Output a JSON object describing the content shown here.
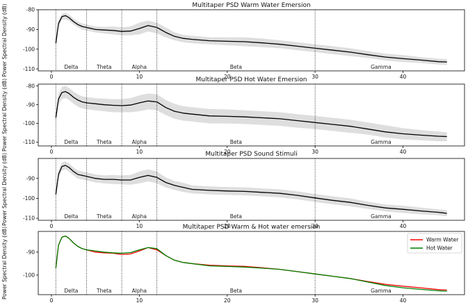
{
  "figure": {
    "background": "#ffffff",
    "mean_color": "#000000",
    "band_fill": "#d3d3d3",
    "band_text_color": "#222222"
  },
  "chart_data": [
    {
      "type": "line",
      "title": "Multitaper PSD Warm Water Emersion",
      "ylabel": "Power Spectral Density (dB)",
      "xlabel": "",
      "xlim": [
        -1.5,
        47
      ],
      "ylim": [
        -111,
        -80
      ],
      "xticks": [
        0,
        10,
        20,
        30,
        40
      ],
      "yticks": [
        -80,
        -90,
        -100,
        -110
      ],
      "freq_bands": [
        {
          "name": "Delta",
          "from": 0.5,
          "to": 4
        },
        {
          "name": "Theta",
          "from": 4,
          "to": 8
        },
        {
          "name": "Alpha",
          "from": 8,
          "to": 12
        },
        {
          "name": "Beta",
          "from": 12,
          "to": 30
        },
        {
          "name": "Gamma",
          "from": 30,
          "to": 45
        }
      ],
      "x": [
        0.5,
        0.8,
        1.2,
        1.6,
        2,
        2.5,
        3,
        3.5,
        4,
        5,
        6,
        7,
        8,
        9,
        10,
        11,
        12,
        13,
        14,
        15,
        16,
        18,
        20,
        22,
        24,
        26,
        28,
        30,
        32,
        34,
        36,
        38,
        40,
        42,
        44,
        45
      ],
      "series": [
        {
          "name": "",
          "values": [
            -97,
            -87,
            -83.5,
            -83,
            -84,
            -86,
            -87.5,
            -88.5,
            -89,
            -90,
            -90.3,
            -90.5,
            -91,
            -90.8,
            -89.5,
            -88,
            -89,
            -91.5,
            -93.5,
            -94.5,
            -95,
            -95.7,
            -96,
            -96.2,
            -96.8,
            -97.5,
            -98.5,
            -99.5,
            -100.5,
            -101.5,
            -102.8,
            -104,
            -104.8,
            -105.5,
            -106.3,
            -106.5
          ],
          "lower": [
            -98.5,
            -89,
            -85,
            -85,
            -85.5,
            -87.5,
            -89,
            -90,
            -90.5,
            -91.5,
            -92,
            -92.5,
            -93,
            -93,
            -92.5,
            -91,
            -92,
            -94,
            -95.5,
            -96.5,
            -97,
            -97.5,
            -98,
            -98.5,
            -99,
            -99.5,
            -100.5,
            -101.5,
            -102.5,
            -103.5,
            -104.5,
            -105.7,
            -106.5,
            -107,
            -107.8,
            -108
          ],
          "upper": [
            -95.5,
            -85.5,
            -82,
            -81.5,
            -82.5,
            -84.5,
            -86,
            -87,
            -87.5,
            -88.5,
            -88.7,
            -88.5,
            -89,
            -88.5,
            -86.5,
            -85.5,
            -86.5,
            -89,
            -91.5,
            -92.8,
            -93.2,
            -94,
            -94,
            -94,
            -94.6,
            -95.5,
            -96.5,
            -97.5,
            -98.5,
            -99.5,
            -101,
            -102.3,
            -103,
            -104,
            -104.8,
            -105
          ]
        }
      ]
    },
    {
      "type": "line",
      "title": "Multitaper PSD Hot Water Emersion",
      "ylabel": "Power Spectral Density (dB)",
      "xlabel": "",
      "xlim": [
        -1.5,
        47
      ],
      "ylim": [
        -112,
        -79
      ],
      "xticks": [
        0,
        10,
        20,
        30,
        40
      ],
      "yticks": [
        -80,
        -90,
        -100,
        -110
      ],
      "freq_bands": [
        {
          "name": "Delta",
          "from": 0.5,
          "to": 4
        },
        {
          "name": "Theta",
          "from": 4,
          "to": 8
        },
        {
          "name": "Alpha",
          "from": 8,
          "to": 12
        },
        {
          "name": "Beta",
          "from": 12,
          "to": 30
        },
        {
          "name": "Gamma",
          "from": 30,
          "to": 45
        }
      ],
      "x": [
        0.5,
        0.8,
        1.2,
        1.6,
        2,
        2.5,
        3,
        3.5,
        4,
        5,
        6,
        7,
        8,
        9,
        10,
        11,
        12,
        13,
        14,
        15,
        16,
        18,
        20,
        22,
        24,
        26,
        28,
        30,
        32,
        34,
        36,
        38,
        40,
        42,
        44,
        45
      ],
      "series": [
        {
          "name": "",
          "values": [
            -97,
            -87,
            -83.5,
            -83,
            -84,
            -86,
            -87.5,
            -88.5,
            -89,
            -89.5,
            -90,
            -90.3,
            -90.5,
            -90.2,
            -89,
            -88,
            -88.5,
            -91.5,
            -93.5,
            -94.5,
            -95,
            -96,
            -96.2,
            -96.5,
            -97,
            -97.5,
            -98.5,
            -99.5,
            -100.5,
            -101.5,
            -103,
            -104.5,
            -105.5,
            -106.2,
            -106.8,
            -107
          ],
          "lower": [
            -99,
            -90,
            -87,
            -86.5,
            -87.5,
            -89.5,
            -91,
            -92,
            -92.5,
            -93,
            -93.5,
            -94,
            -94,
            -94,
            -93.5,
            -92.5,
            -93,
            -95.5,
            -97.5,
            -98.5,
            -99,
            -100,
            -100,
            -100.3,
            -100.8,
            -101.3,
            -102.3,
            -103,
            -104,
            -105,
            -106,
            -107.5,
            -108.5,
            -109,
            -109.5,
            -109.5
          ],
          "upper": [
            -95,
            -84,
            -80.5,
            -80,
            -81,
            -83,
            -84.5,
            -85.5,
            -86,
            -86.5,
            -86.8,
            -87,
            -87,
            -86.5,
            -85,
            -84,
            -84.5,
            -87.5,
            -89.5,
            -90.8,
            -91.3,
            -92.3,
            -92.5,
            -93,
            -93.5,
            -94,
            -95,
            -96,
            -97,
            -98,
            -99.5,
            -101,
            -102.5,
            -103.5,
            -104.3,
            -104.7
          ]
        }
      ]
    },
    {
      "type": "line",
      "title": "Multitaper PSD Sound Stimuli",
      "ylabel": "Power Spectral Density (dB)",
      "xlabel": "",
      "xlim": [
        -1.5,
        47
      ],
      "ylim": [
        -111,
        -80
      ],
      "xticks": [
        0,
        10,
        20,
        30,
        40
      ],
      "yticks": [
        -90,
        -100,
        -110
      ],
      "freq_bands": [
        {
          "name": "Delta",
          "from": 0.5,
          "to": 4
        },
        {
          "name": "Theta",
          "from": 4,
          "to": 8
        },
        {
          "name": "Alpha",
          "from": 8,
          "to": 12
        },
        {
          "name": "Beta",
          "from": 12,
          "to": 30
        },
        {
          "name": "Gamma",
          "from": 30,
          "to": 45
        }
      ],
      "x": [
        0.5,
        0.8,
        1.2,
        1.6,
        2,
        2.5,
        3,
        3.5,
        4,
        5,
        6,
        7,
        8,
        9,
        10,
        11,
        12,
        13,
        14,
        15,
        16,
        18,
        20,
        22,
        24,
        26,
        28,
        30,
        32,
        34,
        36,
        38,
        40,
        42,
        44,
        45
      ],
      "series": [
        {
          "name": "",
          "values": [
            -98,
            -88,
            -84,
            -83.5,
            -84.5,
            -86.5,
            -88,
            -88.5,
            -89,
            -90,
            -90.5,
            -90.5,
            -90.8,
            -90.8,
            -89.5,
            -88.5,
            -89.5,
            -92,
            -93.5,
            -94.5,
            -95.5,
            -96,
            -96.3,
            -96.5,
            -97,
            -97.5,
            -98.5,
            -99.8,
            -101,
            -102,
            -103.5,
            -104.8,
            -105.5,
            -106.3,
            -107,
            -107.5
          ],
          "lower": [
            -99.5,
            -90,
            -86,
            -85.5,
            -86.5,
            -88.5,
            -90,
            -90.5,
            -91,
            -92,
            -92.5,
            -92.8,
            -93,
            -93.2,
            -92.5,
            -91.5,
            -92.5,
            -94.5,
            -95.8,
            -96.8,
            -97.5,
            -98,
            -98.3,
            -98.5,
            -99,
            -99.5,
            -100.5,
            -101.8,
            -103,
            -104,
            -105.3,
            -106.5,
            -107.3,
            -108,
            -108.5,
            -109
          ],
          "upper": [
            -96.5,
            -86,
            -82,
            -81.5,
            -82.5,
            -84.5,
            -86,
            -86.5,
            -87,
            -88,
            -88.5,
            -88.3,
            -88.5,
            -88.3,
            -86.5,
            -85.5,
            -86.5,
            -89.5,
            -91.3,
            -92.2,
            -93.5,
            -94,
            -94.3,
            -94.5,
            -95,
            -95.5,
            -96.5,
            -97.8,
            -99,
            -100,
            -101.7,
            -103.1,
            -103.7,
            -104.6,
            -105.5,
            -106
          ]
        }
      ]
    },
    {
      "type": "line",
      "title": "Multitaper PSD Warm & Hot water emersion",
      "ylabel": "Power Spectral Density (dB)",
      "xlabel": "",
      "xlim": [
        -1.5,
        47
      ],
      "ylim": [
        -108.5,
        -81
      ],
      "xticks": [
        0,
        10,
        20,
        30,
        40
      ],
      "yticks": [
        -90,
        -100
      ],
      "legend": "top-right",
      "freq_bands": [
        {
          "name": "Delta",
          "from": 0.5,
          "to": 4
        },
        {
          "name": "Theta",
          "from": 4,
          "to": 8
        },
        {
          "name": "Alpha",
          "from": 8,
          "to": 12
        },
        {
          "name": "Beta",
          "from": 12,
          "to": 30
        },
        {
          "name": "Gamma",
          "from": 30,
          "to": 45
        }
      ],
      "x": [
        0.5,
        0.8,
        1.2,
        1.6,
        2,
        2.5,
        3,
        3.5,
        4,
        5,
        6,
        7,
        8,
        9,
        10,
        11,
        12,
        13,
        14,
        15,
        16,
        18,
        20,
        22,
        24,
        26,
        28,
        30,
        32,
        34,
        36,
        38,
        40,
        42,
        44,
        45
      ],
      "series": [
        {
          "name": "Warm Water",
          "color": "#ff0000",
          "values": [
            -97,
            -87,
            -83.5,
            -83,
            -84,
            -86,
            -87.5,
            -88.5,
            -89,
            -90,
            -90.3,
            -90.5,
            -91,
            -90.8,
            -89.5,
            -88,
            -89,
            -91.5,
            -93.5,
            -94.5,
            -95,
            -95.7,
            -96,
            -96.2,
            -96.8,
            -97.5,
            -98.5,
            -99.5,
            -100.5,
            -101.5,
            -102.8,
            -104,
            -104.8,
            -105.5,
            -106.3,
            -106.5
          ]
        },
        {
          "name": "Hot Water",
          "color": "#008000",
          "values": [
            -97,
            -87,
            -83.5,
            -83,
            -84,
            -86,
            -87.5,
            -88.5,
            -89,
            -89.5,
            -90,
            -90.3,
            -90.5,
            -90.2,
            -89,
            -88,
            -88.5,
            -91.5,
            -93.5,
            -94.5,
            -95,
            -96,
            -96.2,
            -96.5,
            -97,
            -97.5,
            -98.5,
            -99.5,
            -100.5,
            -101.5,
            -103,
            -104.5,
            -105.5,
            -106.2,
            -106.8,
            -107
          ]
        }
      ]
    }
  ]
}
